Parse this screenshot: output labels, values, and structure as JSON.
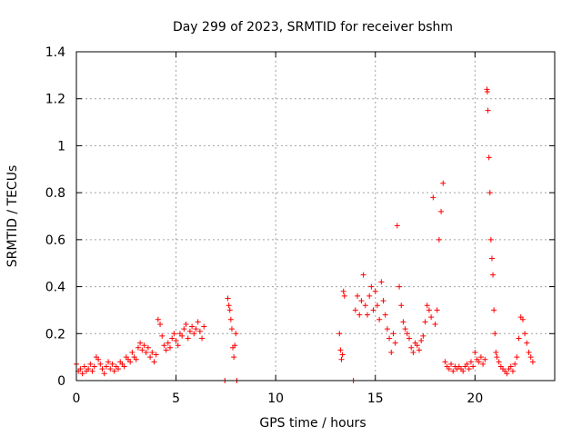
{
  "chart_data": {
    "type": "scatter",
    "title": "Day 299 of 2023, SRMTID for receiver bshm",
    "xlabel": "GPS time / hours",
    "ylabel": "SRMTID / TECUs",
    "xlim": [
      0,
      24
    ],
    "ylim": [
      0,
      1.4
    ],
    "xticks": [
      0,
      5,
      10,
      15,
      20
    ],
    "xtick_labels": [
      "0",
      "5",
      "10",
      "15",
      "20"
    ],
    "yticks": [
      0,
      0.2,
      0.4,
      0.6,
      0.8,
      1.0,
      1.2,
      1.4
    ],
    "ytick_labels": [
      "0",
      "0.2",
      "0.4",
      "0.6",
      "0.8",
      "1",
      "1.2",
      "1.4"
    ],
    "grid": true,
    "marker": "+",
    "marker_color": "#ff0000",
    "series": [
      {
        "name": "SRMTID",
        "x": [
          0.0,
          0.1,
          0.2,
          0.3,
          0.4,
          0.5,
          0.6,
          0.7,
          0.8,
          0.9,
          1.0,
          1.1,
          1.2,
          1.3,
          1.4,
          1.5,
          1.6,
          1.7,
          1.8,
          1.9,
          2.0,
          2.1,
          2.2,
          2.3,
          2.4,
          2.5,
          2.6,
          2.7,
          2.8,
          2.9,
          3.0,
          3.1,
          3.2,
          3.3,
          3.4,
          3.5,
          3.6,
          3.7,
          3.8,
          3.9,
          4.0,
          4.1,
          4.2,
          4.3,
          4.4,
          4.5,
          4.6,
          4.7,
          4.8,
          4.9,
          5.0,
          5.1,
          5.2,
          5.3,
          5.4,
          5.5,
          5.6,
          5.7,
          5.8,
          5.9,
          6.0,
          6.1,
          6.2,
          6.3,
          6.4,
          7.45,
          7.6,
          7.65,
          7.7,
          7.75,
          7.8,
          7.85,
          7.9,
          7.95,
          8.0,
          8.05,
          13.2,
          13.25,
          13.3,
          13.35,
          13.4,
          13.45,
          13.9,
          14.0,
          14.1,
          14.2,
          14.3,
          14.4,
          14.5,
          14.6,
          14.7,
          14.8,
          14.9,
          15.0,
          15.1,
          15.2,
          15.3,
          15.4,
          15.5,
          15.6,
          15.7,
          15.8,
          15.9,
          16.0,
          16.1,
          16.2,
          16.3,
          16.4,
          16.5,
          16.6,
          16.7,
          16.8,
          16.9,
          17.0,
          17.1,
          17.2,
          17.3,
          17.4,
          17.5,
          17.6,
          17.7,
          17.8,
          17.9,
          18.0,
          18.1,
          18.2,
          18.3,
          18.4,
          18.5,
          18.6,
          18.7,
          18.8,
          18.9,
          19.0,
          19.1,
          19.2,
          19.3,
          19.4,
          19.5,
          19.6,
          19.7,
          19.8,
          19.9,
          20.0,
          20.1,
          20.2,
          20.3,
          20.4,
          20.5,
          20.6,
          20.62,
          20.65,
          20.7,
          20.75,
          20.8,
          20.85,
          20.9,
          20.95,
          21.0,
          21.05,
          21.1,
          21.2,
          21.3,
          21.4,
          21.5,
          21.6,
          21.7,
          21.8,
          21.9,
          22.0,
          22.1,
          22.2,
          22.3,
          22.4,
          22.5,
          22.6,
          22.7,
          22.8,
          22.9
        ],
        "y": [
          0.07,
          0.04,
          0.05,
          0.03,
          0.06,
          0.04,
          0.05,
          0.07,
          0.04,
          0.06,
          0.1,
          0.09,
          0.07,
          0.05,
          0.03,
          0.06,
          0.08,
          0.05,
          0.07,
          0.04,
          0.06,
          0.05,
          0.08,
          0.07,
          0.06,
          0.1,
          0.09,
          0.08,
          0.12,
          0.1,
          0.09,
          0.14,
          0.16,
          0.13,
          0.15,
          0.12,
          0.14,
          0.1,
          0.12,
          0.08,
          0.11,
          0.26,
          0.24,
          0.19,
          0.15,
          0.13,
          0.16,
          0.14,
          0.18,
          0.2,
          0.17,
          0.15,
          0.2,
          0.19,
          0.22,
          0.24,
          0.18,
          0.21,
          0.23,
          0.2,
          0.22,
          0.25,
          0.21,
          0.18,
          0.23,
          0.0,
          0.35,
          0.32,
          0.3,
          0.26,
          0.22,
          0.14,
          0.1,
          0.15,
          0.2,
          0.0,
          0.2,
          0.13,
          0.09,
          0.11,
          0.38,
          0.36,
          0.0,
          0.3,
          0.36,
          0.28,
          0.34,
          0.45,
          0.32,
          0.28,
          0.36,
          0.4,
          0.3,
          0.38,
          0.32,
          0.26,
          0.42,
          0.34,
          0.28,
          0.22,
          0.18,
          0.12,
          0.2,
          0.16,
          0.66,
          0.4,
          0.32,
          0.25,
          0.22,
          0.2,
          0.18,
          0.14,
          0.12,
          0.16,
          0.15,
          0.13,
          0.17,
          0.19,
          0.25,
          0.32,
          0.3,
          0.27,
          0.78,
          0.24,
          0.3,
          0.6,
          0.72,
          0.84,
          0.08,
          0.06,
          0.05,
          0.07,
          0.04,
          0.06,
          0.05,
          0.06,
          0.05,
          0.04,
          0.06,
          0.07,
          0.05,
          0.08,
          0.06,
          0.12,
          0.09,
          0.08,
          0.1,
          0.07,
          0.09,
          1.24,
          1.23,
          1.15,
          0.95,
          0.8,
          0.6,
          0.52,
          0.45,
          0.3,
          0.2,
          0.12,
          0.1,
          0.08,
          0.06,
          0.05,
          0.04,
          0.03,
          0.05,
          0.06,
          0.04,
          0.07,
          0.1,
          0.18,
          0.27,
          0.26,
          0.2,
          0.16,
          0.12,
          0.1,
          0.08
        ]
      }
    ]
  }
}
